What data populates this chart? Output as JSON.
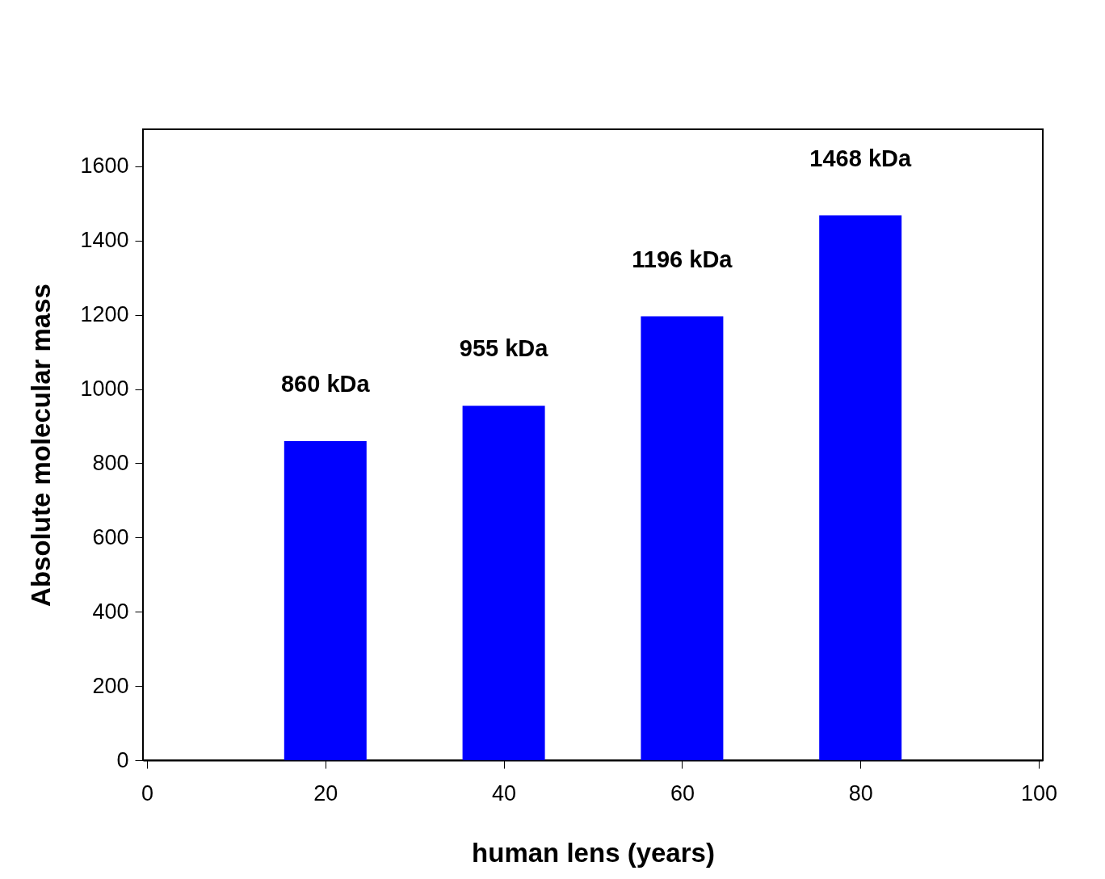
{
  "chart_data": {
    "type": "bar",
    "xlabel": "human lens (years)",
    "ylabel": "Absolute molecular mass",
    "x": [
      20,
      40,
      60,
      80
    ],
    "values": [
      860,
      955,
      1196,
      1468
    ],
    "color": "#0000ff",
    "value_labels": [
      "860 kDa",
      "955 kDa",
      "1196 kDa",
      "1468 kDa"
    ],
    "xlim": [
      0,
      100
    ],
    "xticks": [
      0,
      20,
      40,
      60,
      80,
      100
    ],
    "ylim": [
      0,
      1700
    ],
    "yticks": [
      0,
      200,
      400,
      600,
      800,
      1000,
      1200,
      1400,
      1600
    ],
    "grid": false
  }
}
